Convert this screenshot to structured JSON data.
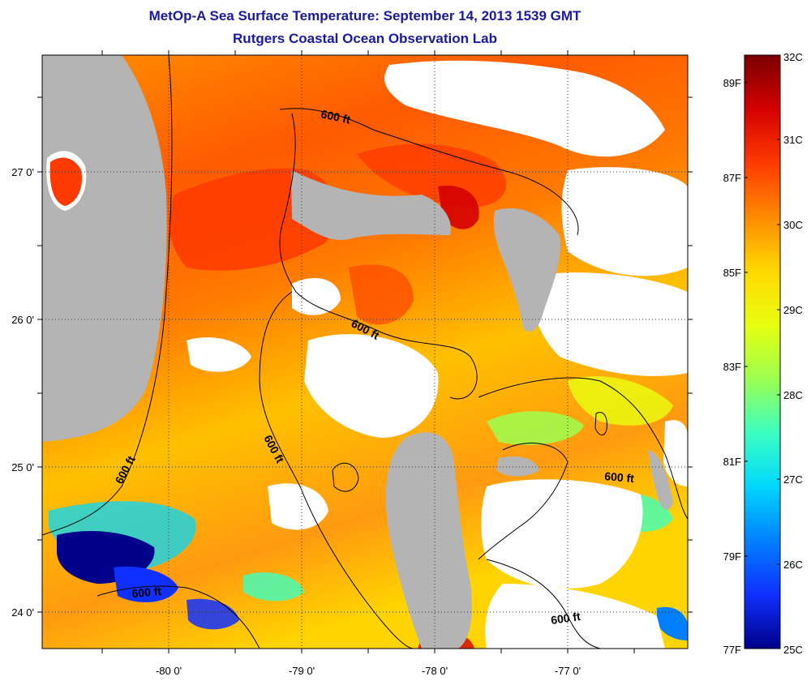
{
  "title": {
    "line1": "MetOp-A Sea Surface Temperature:  September 14, 2013 1539 GMT",
    "line2": "Rutgers Coastal Ocean Observation Lab"
  },
  "map": {
    "x_ticks": [
      "-80 0'",
      "-79 0'",
      "-78 0'",
      "-77 0'"
    ],
    "y_ticks": [
      "27 0'",
      "26 0'",
      "25 0'",
      "24 0'"
    ],
    "contour_label": "600 ft"
  },
  "colorbar": {
    "celsius_labels": [
      "32C",
      "31C",
      "30C",
      "29C",
      "28C",
      "27C",
      "26C",
      "25C"
    ],
    "fahrenheit_labels": [
      "89F",
      "87F",
      "85F",
      "83F",
      "81F",
      "79F",
      "77F"
    ],
    "colors": [
      "#7a0000",
      "#d40000",
      "#ff3a00",
      "#ff8a00",
      "#ffd800",
      "#e8ff10",
      "#9cff50",
      "#3cffc0",
      "#00d8ff",
      "#0080ff",
      "#1030ff",
      "#00008a"
    ]
  },
  "colors": {
    "title": "#1a1a9e",
    "land": "#b4b4b4",
    "no_data": "#ffffff"
  }
}
